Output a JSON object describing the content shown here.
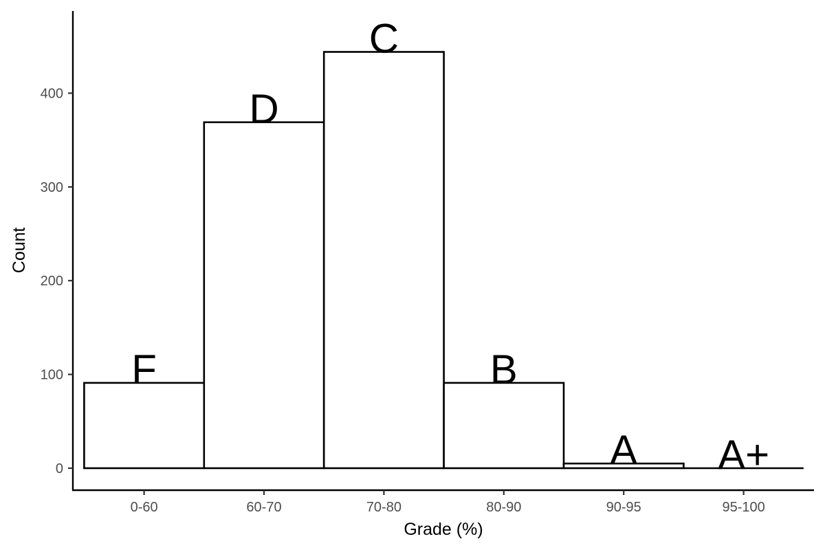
{
  "chart_data": {
    "type": "bar",
    "title": "",
    "xlabel": "Grade (%)",
    "ylabel": "Count",
    "categories": [
      "0-60",
      "60-70",
      "70-80",
      "80-90",
      "90-95",
      "95-100"
    ],
    "values": [
      91,
      369,
      444,
      91,
      5,
      0
    ],
    "bar_labels": [
      "F",
      "D",
      "C",
      "B",
      "A",
      "A+"
    ],
    "ylim": [
      0,
      485
    ],
    "yticks": [
      0,
      100,
      200,
      300,
      400
    ],
    "grid": false,
    "legend": "none",
    "bar_fill": "#ffffff",
    "bar_stroke": "#000000"
  }
}
